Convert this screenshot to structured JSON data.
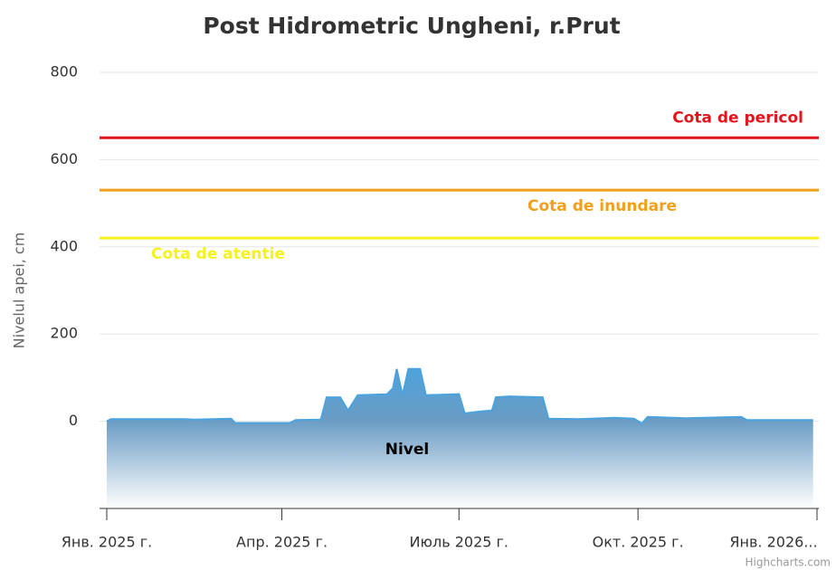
{
  "chart_data": {
    "type": "area",
    "title": "Post Hidrometric Ungheni, r.Prut",
    "y_axis_label": "Nivelul apei, cm",
    "credits": "Highcharts.com",
    "xlim": [
      "2025-01-01",
      "2026-01-01"
    ],
    "xticks": [
      {
        "value": "2025-01-01",
        "label": "Янв. 2025 г."
      },
      {
        "value": "2025-04-01",
        "label": "Апр. 2025 г."
      },
      {
        "value": "2025-07-01",
        "label": "Июль 2025 г."
      },
      {
        "value": "2025-10-01",
        "label": "Окт. 2025 г."
      },
      {
        "value": "2026-01-01",
        "label": "Янв. 2026..."
      }
    ],
    "ylim": [
      -200,
      800
    ],
    "yticks": [
      0,
      200,
      400,
      600,
      800
    ],
    "grid": true,
    "plot_lines": [
      {
        "value": 650,
        "label": "Cota de pericol",
        "color": "#e0161c"
      },
      {
        "value": 530,
        "label": "Cota de inundare",
        "color": "#f0a01c"
      },
      {
        "value": 420,
        "label": "Cota de atentie",
        "color": "#f6f21e"
      }
    ],
    "x": [
      "2025-01-01",
      "2025-01-03",
      "2025-02-10",
      "2025-02-15",
      "2025-03-06",
      "2025-03-08",
      "2025-04-05",
      "2025-04-08",
      "2025-04-21",
      "2025-04-24",
      "2025-05-01",
      "2025-05-05",
      "2025-05-10",
      "2025-05-25",
      "2025-05-28",
      "2025-05-30",
      "2025-06-02",
      "2025-06-05",
      "2025-06-11",
      "2025-06-14",
      "2025-07-01",
      "2025-07-04",
      "2025-07-11",
      "2025-07-18",
      "2025-07-20",
      "2025-07-27",
      "2025-08-13",
      "2025-08-16",
      "2025-08-31",
      "2025-09-19",
      "2025-09-29",
      "2025-10-03",
      "2025-10-06",
      "2025-10-26",
      "2025-11-23",
      "2025-11-26",
      "2025-12-30"
    ],
    "series": [
      {
        "name": "Nivel",
        "color": "#4aa3df",
        "values": [
          0,
          5,
          5,
          4,
          6,
          -4,
          -4,
          3,
          4,
          55,
          55,
          25,
          60,
          62,
          75,
          120,
          60,
          120,
          120,
          60,
          62,
          18,
          22,
          25,
          55,
          57,
          55,
          6,
          5,
          8,
          6,
          -5,
          10,
          7,
          10,
          3,
          3
        ]
      }
    ]
  }
}
